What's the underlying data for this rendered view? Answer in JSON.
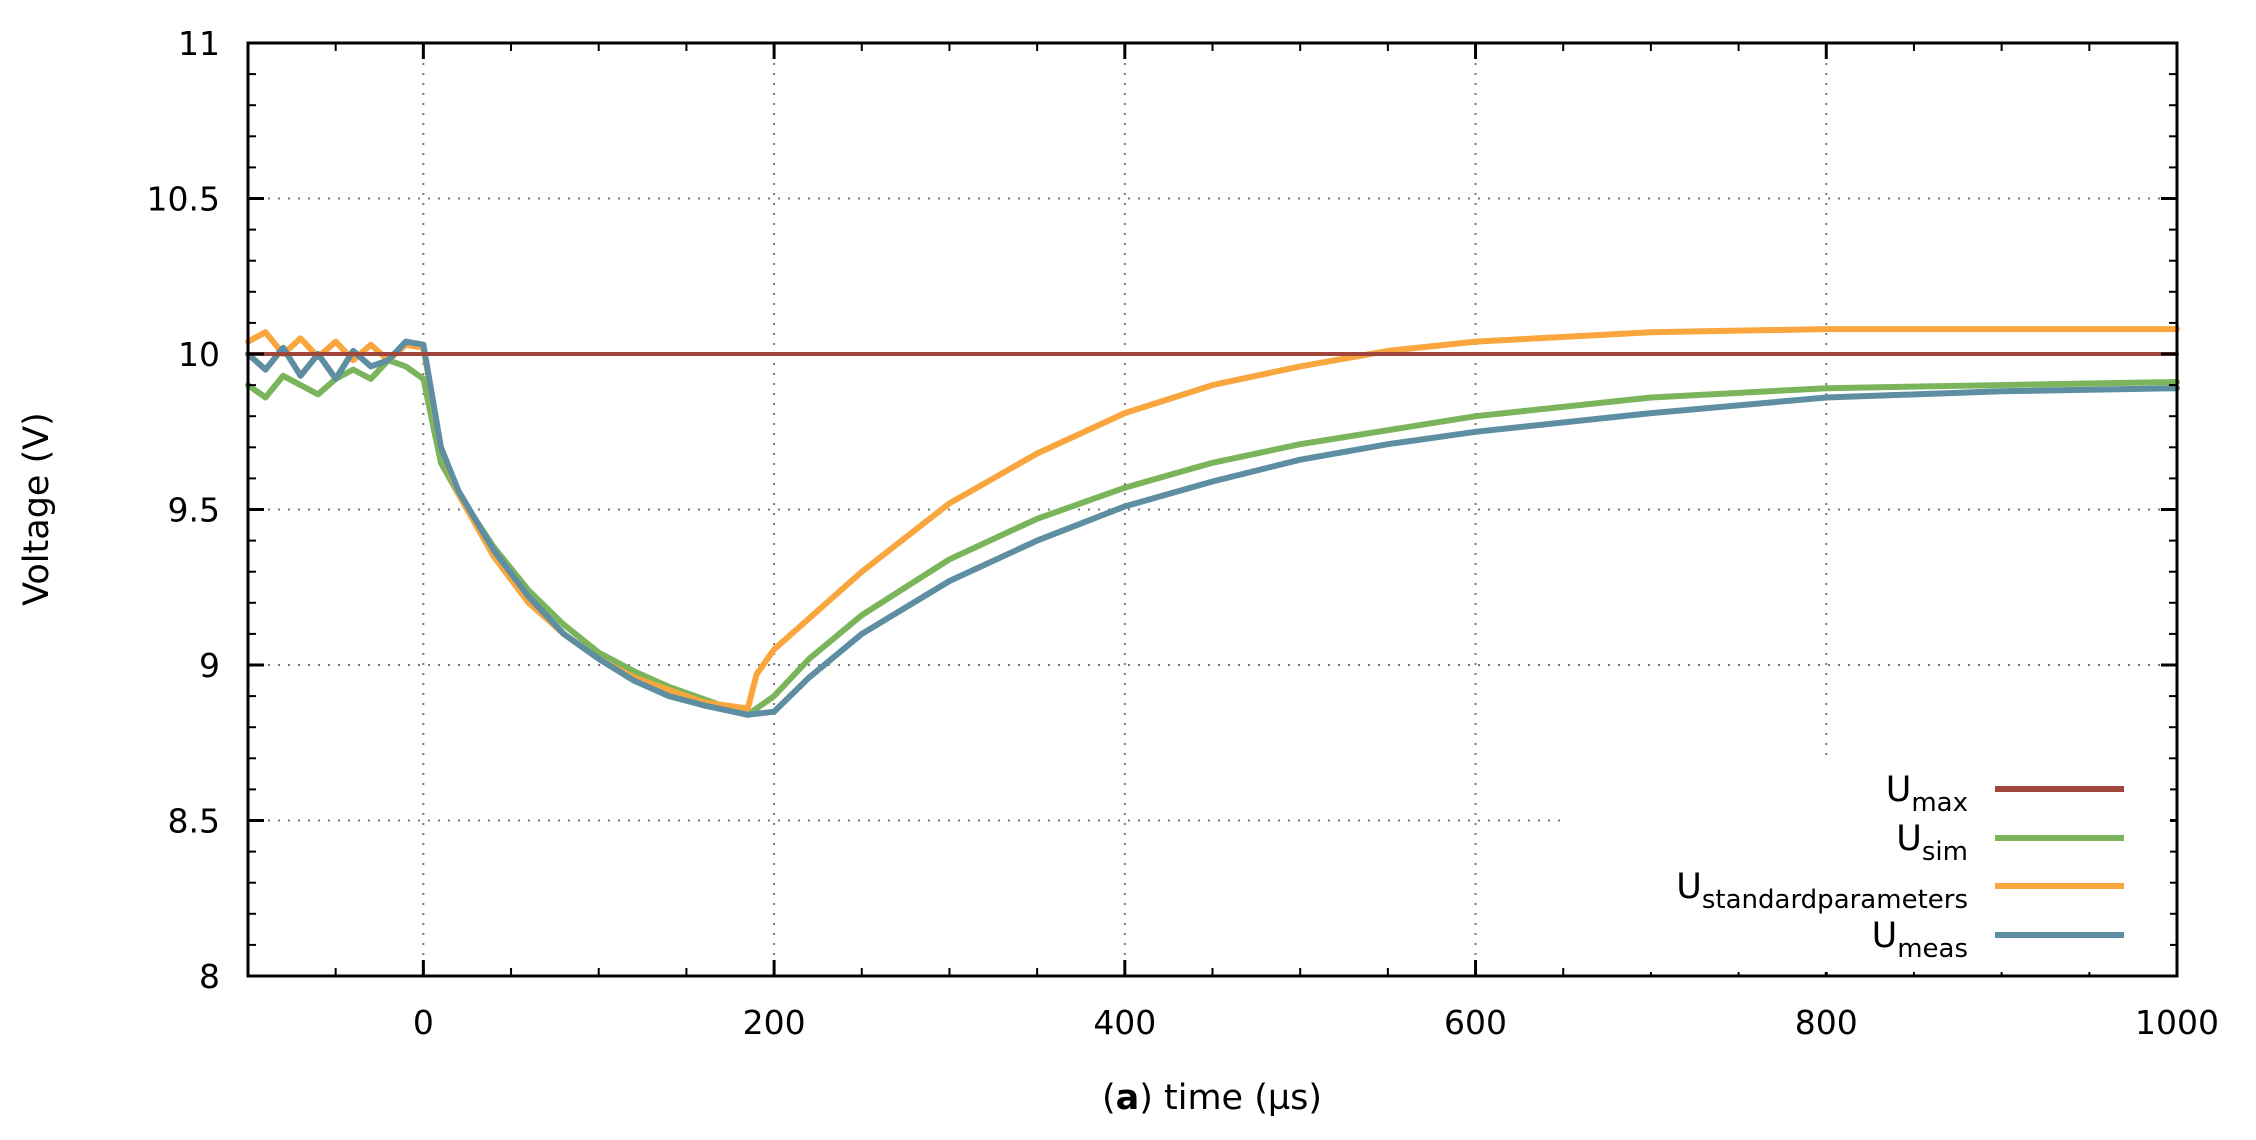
{
  "chart_data": {
    "type": "line",
    "title": "",
    "xlabel_prefix": "(",
    "xlabel_bold": "a",
    "xlabel_suffix": ") time (µs)",
    "ylabel": "Voltage (V)",
    "xlim": [
      -100,
      1000
    ],
    "ylim": [
      8,
      11
    ],
    "xticks": [
      0,
      200,
      400,
      600,
      800,
      1000
    ],
    "xtick_labels": [
      "0",
      "200",
      "400",
      "600",
      "800",
      "1000"
    ],
    "yticks": [
      8,
      8.5,
      9,
      9.5,
      10,
      10.5,
      11
    ],
    "ytick_labels": [
      "8",
      "8.5",
      "9",
      "9.5",
      "10",
      "10.5",
      "11"
    ],
    "grid": true,
    "legend_position": "bottom-right",
    "series": [
      {
        "name": "Umax",
        "label_main": "U",
        "label_sub": "max",
        "color": "#a0453b",
        "x": [
          -100,
          1000
        ],
        "y": [
          10.0,
          10.0
        ]
      },
      {
        "name": "Usim",
        "label_main": "U",
        "label_sub": "sim",
        "color": "#7ab55c",
        "x": [
          -100,
          -90,
          -80,
          -70,
          -60,
          -50,
          -40,
          -30,
          -20,
          -10,
          0,
          10,
          20,
          40,
          60,
          80,
          100,
          120,
          140,
          160,
          185,
          200,
          220,
          250,
          300,
          350,
          400,
          450,
          500,
          600,
          700,
          800,
          900,
          1000
        ],
        "y": [
          9.9,
          9.86,
          9.93,
          9.9,
          9.87,
          9.92,
          9.95,
          9.92,
          9.98,
          9.96,
          9.92,
          9.65,
          9.55,
          9.38,
          9.24,
          9.13,
          9.04,
          8.98,
          8.93,
          8.89,
          8.84,
          8.9,
          9.02,
          9.16,
          9.34,
          9.47,
          9.57,
          9.65,
          9.71,
          9.8,
          9.86,
          9.89,
          9.9,
          9.91
        ]
      },
      {
        "name": "Ustandardparameters",
        "label_main": "U",
        "label_sub": "standardparameters",
        "color": "#f8a63d",
        "x": [
          -100,
          -90,
          -80,
          -70,
          -60,
          -50,
          -40,
          -30,
          -20,
          -10,
          0,
          10,
          20,
          40,
          60,
          80,
          100,
          120,
          140,
          160,
          185,
          190,
          200,
          250,
          300,
          350,
          400,
          450,
          500,
          550,
          600,
          700,
          800,
          900,
          1000
        ],
        "y": [
          10.04,
          10.07,
          10.0,
          10.05,
          9.99,
          10.04,
          9.98,
          10.03,
          9.98,
          10.03,
          10.02,
          9.7,
          9.55,
          9.35,
          9.2,
          9.1,
          9.02,
          8.96,
          8.92,
          8.88,
          8.86,
          8.97,
          9.05,
          9.3,
          9.52,
          9.68,
          9.81,
          9.9,
          9.96,
          10.01,
          10.04,
          10.07,
          10.08,
          10.08,
          10.08
        ]
      },
      {
        "name": "Umeas",
        "label_main": "U",
        "label_sub": "meas",
        "color": "#5d8ea1",
        "x": [
          -100,
          -90,
          -80,
          -70,
          -60,
          -50,
          -40,
          -30,
          -20,
          -10,
          0,
          10,
          20,
          40,
          60,
          80,
          100,
          120,
          140,
          160,
          185,
          200,
          220,
          250,
          300,
          350,
          400,
          450,
          500,
          550,
          600,
          700,
          800,
          900,
          1000
        ],
        "y": [
          10.0,
          9.95,
          10.02,
          9.93,
          10.0,
          9.92,
          10.01,
          9.96,
          9.98,
          10.04,
          10.03,
          9.7,
          9.56,
          9.37,
          9.22,
          9.1,
          9.02,
          8.95,
          8.9,
          8.87,
          8.84,
          8.85,
          8.96,
          9.1,
          9.27,
          9.4,
          9.51,
          9.59,
          9.66,
          9.71,
          9.75,
          9.81,
          9.86,
          9.88,
          9.89
        ]
      }
    ]
  }
}
